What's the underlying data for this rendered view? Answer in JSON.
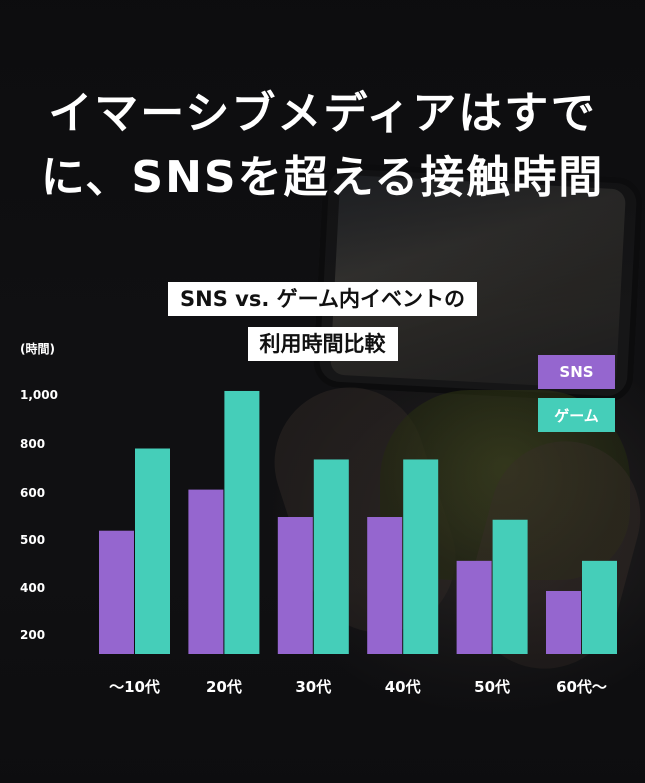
{
  "headline": {
    "line1": "イマーシブメディアはすで",
    "line2": "に、SNSを超える接触時間"
  },
  "chart_data": {
    "type": "bar",
    "title_lines": [
      "SNS vs. ゲーム内イベントの",
      "利用時間比較"
    ],
    "unit_label": "(時間)",
    "categories": [
      "〜10代",
      "20代",
      "30代",
      "40代",
      "50代",
      "60代〜"
    ],
    "y_tick_labels": [
      "200",
      "400",
      "500",
      "600",
      "800",
      "1,000"
    ],
    "y_tick_values": [
      200,
      400,
      500,
      600,
      800,
      1000
    ],
    "ylim": [
      100,
      1100
    ],
    "legend_position": "right",
    "series": [
      {
        "name": "SNS",
        "color": "#9566cf",
        "values": [
          550,
          700,
          600,
          600,
          440,
          330
        ]
      },
      {
        "name": "ゲーム",
        "color": "#45ceb9",
        "values": [
          850,
          1060,
          810,
          810,
          590,
          440
        ]
      }
    ]
  }
}
